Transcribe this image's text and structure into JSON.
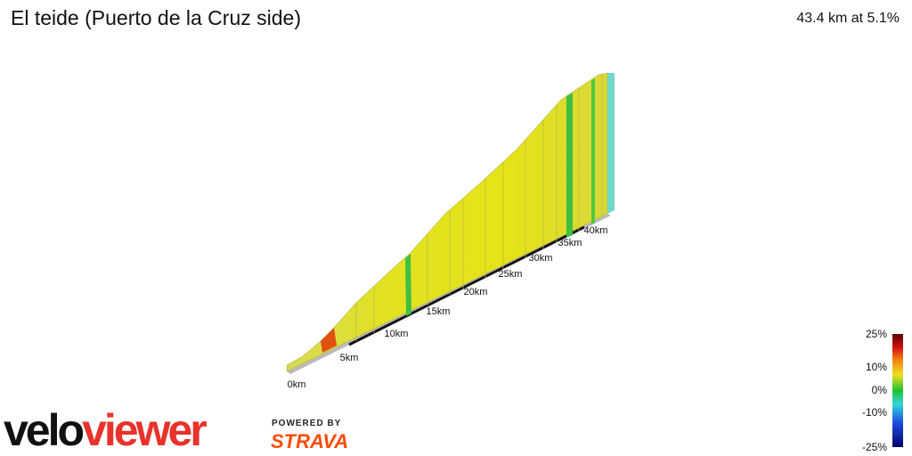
{
  "header": {
    "title": "El teide (Puerto de la Cruz side)",
    "summary": "43.4 km at 5.1%"
  },
  "distance_labels": [
    "0km",
    "5km",
    "10km",
    "15km",
    "20km",
    "25km",
    "30km",
    "35km",
    "40km"
  ],
  "color_scale": [
    "25%",
    "10%",
    "0%",
    "-10%",
    "-25%"
  ],
  "logo": {
    "velo": "velo",
    "viewer": "viewer",
    "powered_by": "POWERED BY",
    "strava": "STRAVA"
  }
}
